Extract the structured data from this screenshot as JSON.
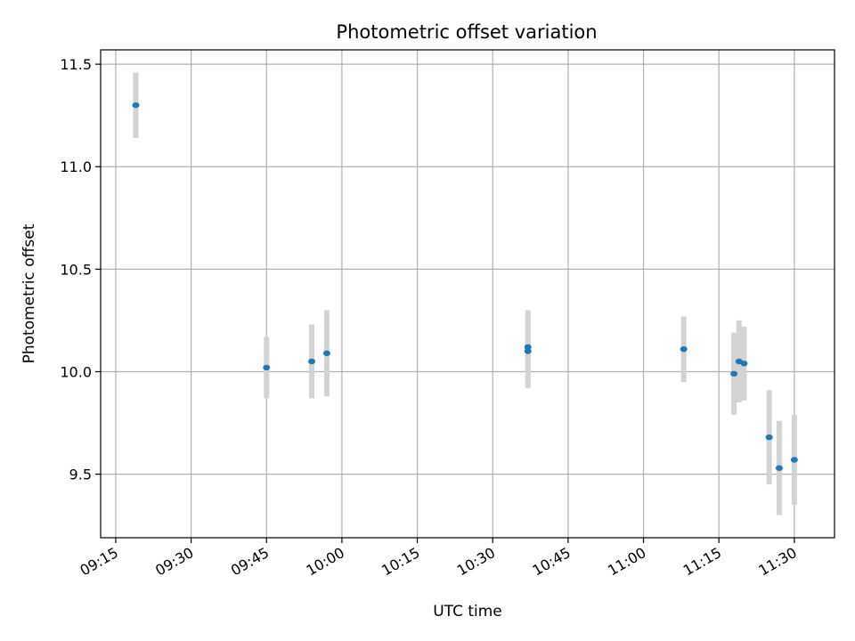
{
  "chart_data": {
    "type": "scatter",
    "title": "Photometric offset variation",
    "xlabel": "UTC time",
    "ylabel": "Photometric offset",
    "xlim": [
      "09:12",
      "11:38"
    ],
    "ylim": [
      9.19,
      11.57
    ],
    "x_ticks": [
      "09:15",
      "09:30",
      "09:45",
      "10:00",
      "10:15",
      "10:30",
      "10:45",
      "11:00",
      "11:15",
      "11:30"
    ],
    "y_ticks": [
      "9.5",
      "10.0",
      "10.5",
      "11.0",
      "11.5"
    ],
    "grid": true,
    "legend": "none",
    "colors": {
      "marker": "#1f77b4",
      "errorbar": "#d3d3d3",
      "grid": "#b0b0b0"
    },
    "points": [
      {
        "x": "09:19",
        "y": 11.3,
        "err": 0.16
      },
      {
        "x": "09:45",
        "y": 10.02,
        "err": 0.15
      },
      {
        "x": "09:54",
        "y": 10.05,
        "err": 0.18
      },
      {
        "x": "09:57",
        "y": 10.09,
        "err": 0.21
      },
      {
        "x": "10:37",
        "y": 10.1,
        "err": 0.18
      },
      {
        "x": "10:37",
        "y": 10.12,
        "err": 0.18
      },
      {
        "x": "11:08",
        "y": 10.11,
        "err": 0.16
      },
      {
        "x": "11:18",
        "y": 9.99,
        "err": 0.2
      },
      {
        "x": "11:19",
        "y": 10.05,
        "err": 0.2
      },
      {
        "x": "11:20",
        "y": 10.04,
        "err": 0.18
      },
      {
        "x": "11:25",
        "y": 9.68,
        "err": 0.23
      },
      {
        "x": "11:27",
        "y": 9.53,
        "err": 0.23
      },
      {
        "x": "11:30",
        "y": 9.57,
        "err": 0.22
      }
    ]
  }
}
